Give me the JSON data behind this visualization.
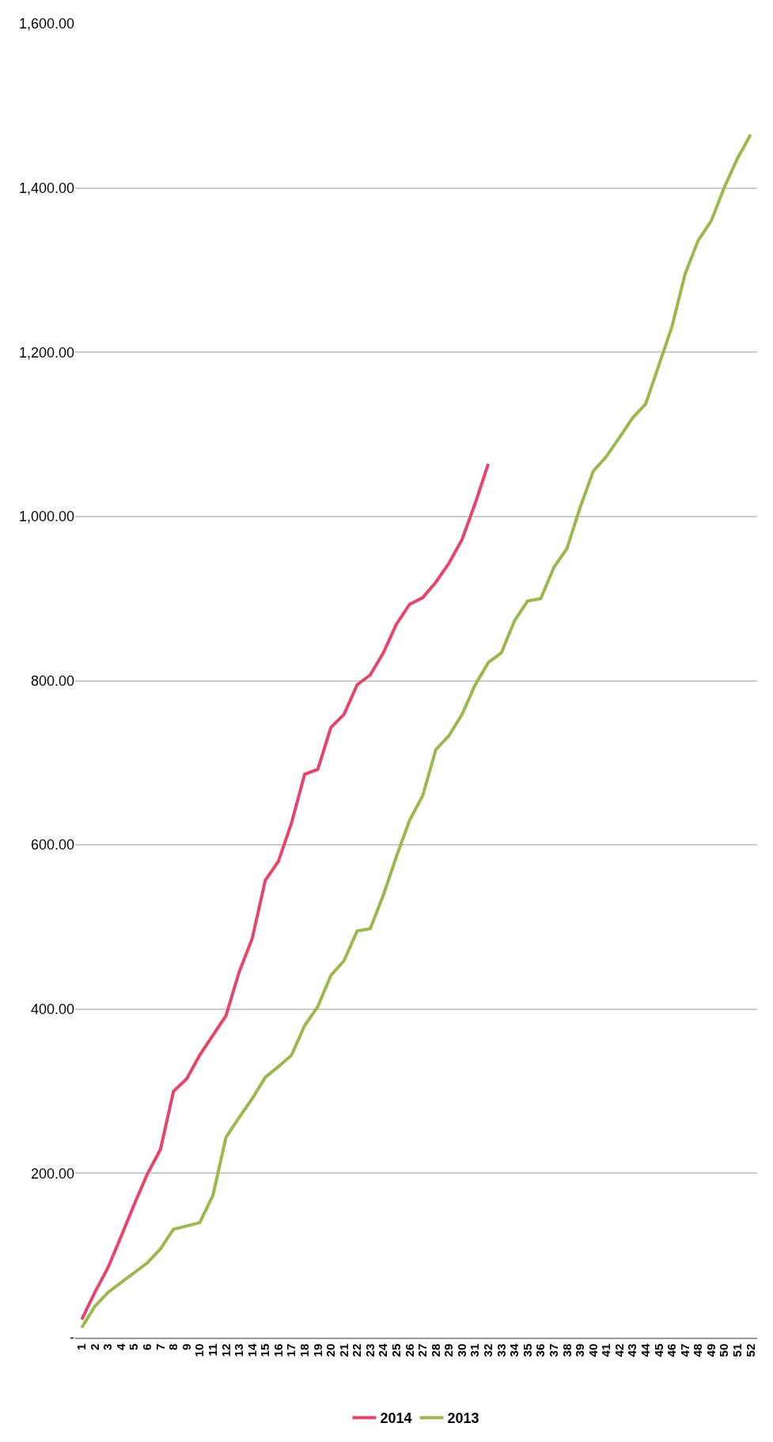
{
  "chart_data": {
    "type": "line",
    "categories": [
      "1",
      "2",
      "3",
      "4",
      "5",
      "6",
      "7",
      "8",
      "9",
      "10",
      "11",
      "12",
      "13",
      "14",
      "15",
      "16",
      "17",
      "18",
      "19",
      "20",
      "21",
      "22",
      "23",
      "24",
      "25",
      "26",
      "27",
      "28",
      "29",
      "30",
      "31",
      "32",
      "33",
      "34",
      "35",
      "36",
      "37",
      "38",
      "39",
      "40",
      "41",
      "42",
      "43",
      "44",
      "45",
      "46",
      "47",
      "48",
      "49",
      "50",
      "51",
      "52"
    ],
    "series": [
      {
        "name": "2014",
        "color": "#e8436a",
        "values": [
          22,
          55,
          85,
          123,
          162,
          199,
          229,
          300,
          315,
          344,
          368,
          392,
          445,
          486,
          557,
          580,
          627,
          686,
          692,
          743,
          759,
          795,
          807,
          834,
          869,
          893,
          901,
          920,
          943,
          972,
          1016,
          1064,
          null,
          null,
          null,
          null,
          null,
          null,
          null,
          null,
          null,
          null,
          null,
          null,
          null,
          null,
          null,
          null,
          null,
          null,
          null,
          null
        ]
      },
      {
        "name": "2013",
        "color": "#9bb84a",
        "values": [
          12,
          38,
          55,
          67,
          79,
          91,
          108,
          132,
          136,
          140,
          173,
          244,
          268,
          291,
          317,
          330,
          344,
          380,
          403,
          441,
          459,
          495,
          498,
          539,
          586,
          630,
          660,
          716,
          733,
          759,
          795,
          822,
          834,
          873,
          897,
          900,
          938,
          961,
          1011,
          1055,
          1073,
          1096,
          1120,
          1137,
          1184,
          1231,
          1295,
          1336,
          1360,
          1401,
          1436,
          1465
        ]
      }
    ],
    "ylim": [
      0,
      1600
    ],
    "yticks": [
      {
        "value": 0,
        "label": "-"
      },
      {
        "value": 200,
        "label": "200.00"
      },
      {
        "value": 400,
        "label": "400.00"
      },
      {
        "value": 600,
        "label": "600.00"
      },
      {
        "value": 800,
        "label": "800.00"
      },
      {
        "value": 1000,
        "label": "1,000.00"
      },
      {
        "value": 1200,
        "label": "1,200.00"
      },
      {
        "value": 1400,
        "label": "1,400.00"
      },
      {
        "value": 1600,
        "label": "1,600.00"
      }
    ],
    "grid": "y",
    "legend": "bottom"
  }
}
